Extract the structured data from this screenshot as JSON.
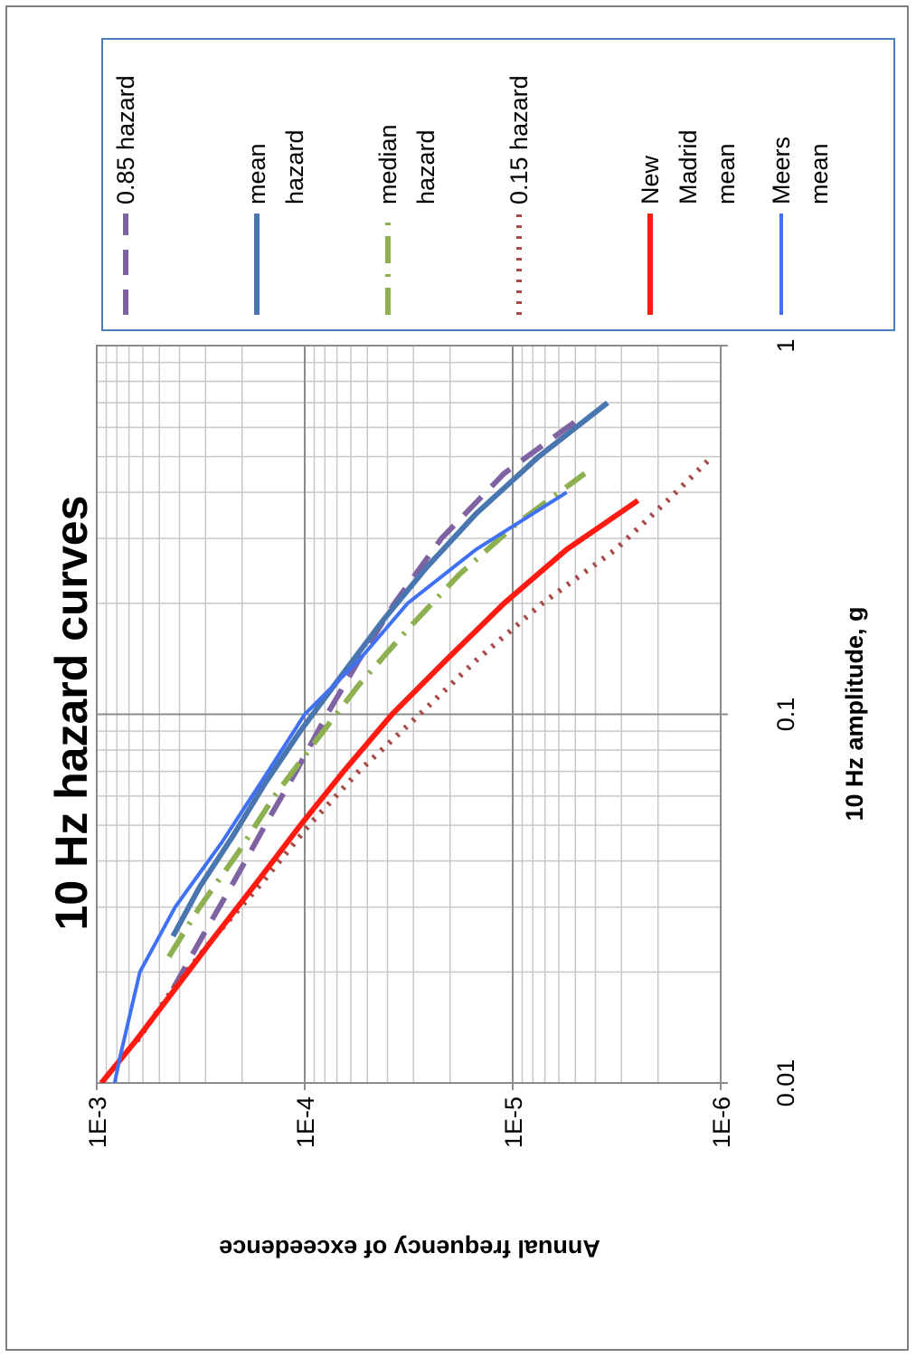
{
  "chart_data": {
    "type": "line",
    "title": "10 Hz hazard curves",
    "xlabel": "10 Hz amplitude, g",
    "ylabel": "Annual frequency of exceedence",
    "x_scale": "log",
    "y_scale": "log",
    "xlim": [
      0.01,
      1
    ],
    "ylim": [
      1e-06,
      0.001
    ],
    "x_ticks": [
      0.01,
      0.1,
      1
    ],
    "x_tick_labels": [
      "0.01",
      "0.1",
      "1"
    ],
    "y_ticks": [
      0.001,
      0.0001,
      1e-05,
      1e-06
    ],
    "y_tick_labels": [
      "1E-3",
      "1E-4",
      "1E-5",
      "1E-6"
    ],
    "grid": true,
    "orientation": "rotated 90° counter-clockwise",
    "legend_position": "right",
    "series": [
      {
        "name": "0.85 hazard",
        "color": "#7f62a2",
        "dash": "28,16",
        "width": 6,
        "x": [
          0.018,
          0.025,
          0.035,
          0.05,
          0.07,
          0.1,
          0.14,
          0.2,
          0.3,
          0.45,
          0.65
        ],
        "y": [
          0.00043,
          0.00031,
          0.00022,
          0.000155,
          0.00011,
          7.8e-05,
          5.5e-05,
          3.7e-05,
          2.2e-05,
          1.1e-05,
          4.5e-06
        ]
      },
      {
        "name": "mean hazard",
        "color": "#4a76b0",
        "dash": "",
        "width": 6,
        "x": [
          0.025,
          0.034,
          0.047,
          0.065,
          0.09,
          0.12,
          0.18,
          0.25,
          0.35,
          0.5,
          0.7
        ],
        "y": [
          0.00043,
          0.00032,
          0.00022,
          0.000155,
          0.000105,
          7.2e-05,
          4.2e-05,
          2.6e-05,
          1.5e-05,
          7.5e-06,
          3.5e-06
        ]
      },
      {
        "name": "median hazard",
        "color": "#8db050",
        "dash": "30,12,3,12",
        "width": 6,
        "x": [
          0.022,
          0.03,
          0.042,
          0.06,
          0.085,
          0.12,
          0.17,
          0.24,
          0.33,
          0.45
        ],
        "y": [
          0.00045,
          0.00032,
          0.00021,
          0.00014,
          8.8e-05,
          5.5e-05,
          3.2e-05,
          1.8e-05,
          9.5e-06,
          4.5e-06
        ]
      },
      {
        "name": "0.15 hazard",
        "color": "#a84a48",
        "dash": "3,9",
        "width": 6,
        "x": [
          0.013,
          0.018,
          0.025,
          0.035,
          0.05,
          0.07,
          0.1,
          0.14,
          0.2,
          0.28,
          0.38,
          0.5
        ],
        "y": [
          0.00064,
          0.00043,
          0.00027,
          0.00016,
          9.55e-05,
          5.5e-05,
          2.8e-05,
          1.5e-05,
          7.2e-06,
          3.2e-06,
          1.8e-06,
          1.1e-06
        ]
      },
      {
        "name": "New Madrid mean",
        "color": "#ff1a12",
        "dash": "",
        "width": 6,
        "x": [
          0.01,
          0.013,
          0.018,
          0.025,
          0.035,
          0.05,
          0.07,
          0.1,
          0.14,
          0.2,
          0.28,
          0.38
        ],
        "y": [
          0.00095,
          0.00065,
          0.00042,
          0.00027,
          0.00017,
          0.000105,
          6.5e-05,
          3.8e-05,
          2.1e-05,
          1.1e-05,
          5.5e-06,
          2.5e-06
        ]
      },
      {
        "name": "Meers mean",
        "color": "#4171f3",
        "dash": "",
        "width": 4,
        "x": [
          0.01,
          0.0115,
          0.02,
          0.03,
          0.045,
          0.07,
          0.1,
          0.14,
          0.2,
          0.28,
          0.4
        ],
        "y": [
          0.00082,
          0.00078,
          0.00062,
          0.00042,
          0.00025,
          0.00015,
          0.0001,
          5.5e-05,
          3.2e-05,
          1.5e-05,
          5.5e-06
        ]
      }
    ]
  }
}
